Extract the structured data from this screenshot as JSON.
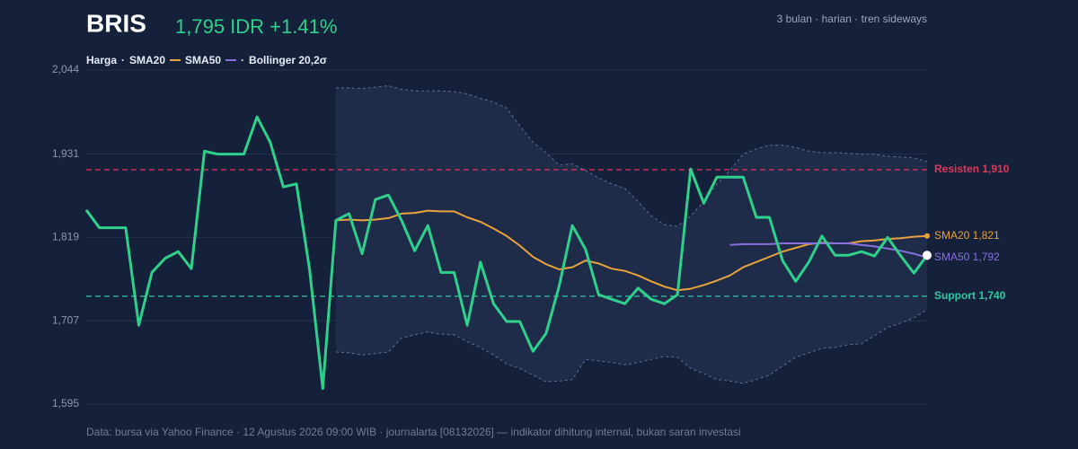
{
  "chart_data": {
    "type": "line",
    "title": "BRIS",
    "subtitle": "1,795 IDR +1.41%",
    "note": "3 bulan · harian · tren sideways",
    "source": "Data: bursa via Yahoo Finance · 12 Agustus 2026 09:00 WIB · journalarta [08132026] — indikator dihitung internal, bukan saran investasi",
    "ylim": [
      1595,
      2044
    ],
    "yticks": [
      {
        "value": 1595,
        "label": "1,595"
      },
      {
        "value": 1707,
        "label": "1,707"
      },
      {
        "value": 1819,
        "label": "1,819"
      },
      {
        "value": 1931,
        "label": "1,931"
      },
      {
        "value": 2044,
        "label": "2,044"
      }
    ],
    "grid": true,
    "series": [
      {
        "name": "Harga",
        "color": "#2fd08c",
        "values": [
          1856,
          1832,
          1832,
          1832,
          1701,
          1772,
          1791,
          1800,
          1777,
          1935,
          1931,
          1931,
          1931,
          1981,
          1947,
          1887,
          1891,
          1776,
          1616,
          1842,
          1851,
          1797,
          1870,
          1876,
          1842,
          1801,
          1835,
          1772,
          1772,
          1701,
          1786,
          1730,
          1706,
          1706,
          1666,
          1690,
          1754,
          1835,
          1803,
          1742,
          1736,
          1730,
          1751,
          1736,
          1730,
          1742,
          1911,
          1865,
          1900,
          1900,
          1900,
          1846,
          1846,
          1788,
          1760,
          1786,
          1821,
          1795,
          1795,
          1800,
          1794,
          1819,
          1794,
          1771,
          1795
        ]
      },
      {
        "name": "SMA20",
        "color": "#e8a33a",
        "end_label": "SMA20 1,821",
        "values": [
          null,
          null,
          null,
          null,
          null,
          null,
          null,
          null,
          null,
          null,
          null,
          null,
          null,
          null,
          null,
          null,
          null,
          null,
          null,
          1842,
          1843,
          1842,
          1843,
          1845,
          1851,
          1852,
          1855,
          1854,
          1854,
          1846,
          1840,
          1831,
          1821,
          1808,
          1793,
          1783,
          1776,
          1779,
          1788,
          1784,
          1777,
          1774,
          1768,
          1760,
          1753,
          1748,
          1750,
          1755,
          1761,
          1768,
          1779,
          1786,
          1793,
          1800,
          1805,
          1810,
          1812,
          1811,
          1811,
          1814,
          1815,
          1817,
          1818,
          1820,
          1821
        ]
      },
      {
        "name": "SMA50",
        "color": "#8a6fe0",
        "end_label": "SMA50 1,792",
        "values": [
          null,
          null,
          null,
          null,
          null,
          null,
          null,
          null,
          null,
          null,
          null,
          null,
          null,
          null,
          null,
          null,
          null,
          null,
          null,
          null,
          null,
          null,
          null,
          null,
          null,
          null,
          null,
          null,
          null,
          null,
          null,
          null,
          null,
          null,
          null,
          null,
          null,
          null,
          null,
          null,
          null,
          null,
          null,
          null,
          null,
          null,
          null,
          null,
          null,
          1809,
          1810,
          1810,
          1810,
          1811,
          1811,
          1811,
          1811,
          1811,
          1811,
          1809,
          1807,
          1804,
          1801,
          1797,
          1792
        ]
      },
      {
        "name": "Bollinger 20,2σ",
        "color": "#5a6f9a",
        "upper": [
          null,
          null,
          null,
          null,
          null,
          null,
          null,
          null,
          null,
          null,
          null,
          null,
          null,
          null,
          null,
          null,
          null,
          null,
          null,
          2020,
          2020,
          2019,
          2021,
          2023,
          2018,
          2016,
          2016,
          2016,
          2015,
          2012,
          2006,
          2001,
          1993,
          1969,
          1947,
          1933,
          1916,
          1918,
          1909,
          1899,
          1891,
          1885,
          1867,
          1848,
          1836,
          1834,
          1848,
          1867,
          1891,
          1909,
          1931,
          1938,
          1943,
          1943,
          1940,
          1935,
          1933,
          1933,
          1932,
          1931,
          1931,
          1928,
          1927,
          1926,
          1921
        ],
        "lower": [
          null,
          null,
          null,
          null,
          null,
          null,
          null,
          null,
          null,
          null,
          null,
          null,
          null,
          null,
          null,
          null,
          null,
          null,
          null,
          1665,
          1664,
          1661,
          1663,
          1665,
          1684,
          1688,
          1692,
          1689,
          1688,
          1679,
          1671,
          1661,
          1649,
          1643,
          1634,
          1625,
          1626,
          1628,
          1655,
          1653,
          1651,
          1648,
          1651,
          1655,
          1659,
          1658,
          1643,
          1636,
          1628,
          1626,
          1623,
          1628,
          1634,
          1646,
          1658,
          1664,
          1670,
          1671,
          1675,
          1676,
          1687,
          1698,
          1704,
          1711,
          1722
        ]
      }
    ],
    "reference_lines": [
      {
        "label": "Resisten 1,910",
        "value": 1910,
        "color": "#e0365a"
      },
      {
        "label": "Support 1,740",
        "value": 1740,
        "color": "#2fc9a0"
      }
    ]
  }
}
